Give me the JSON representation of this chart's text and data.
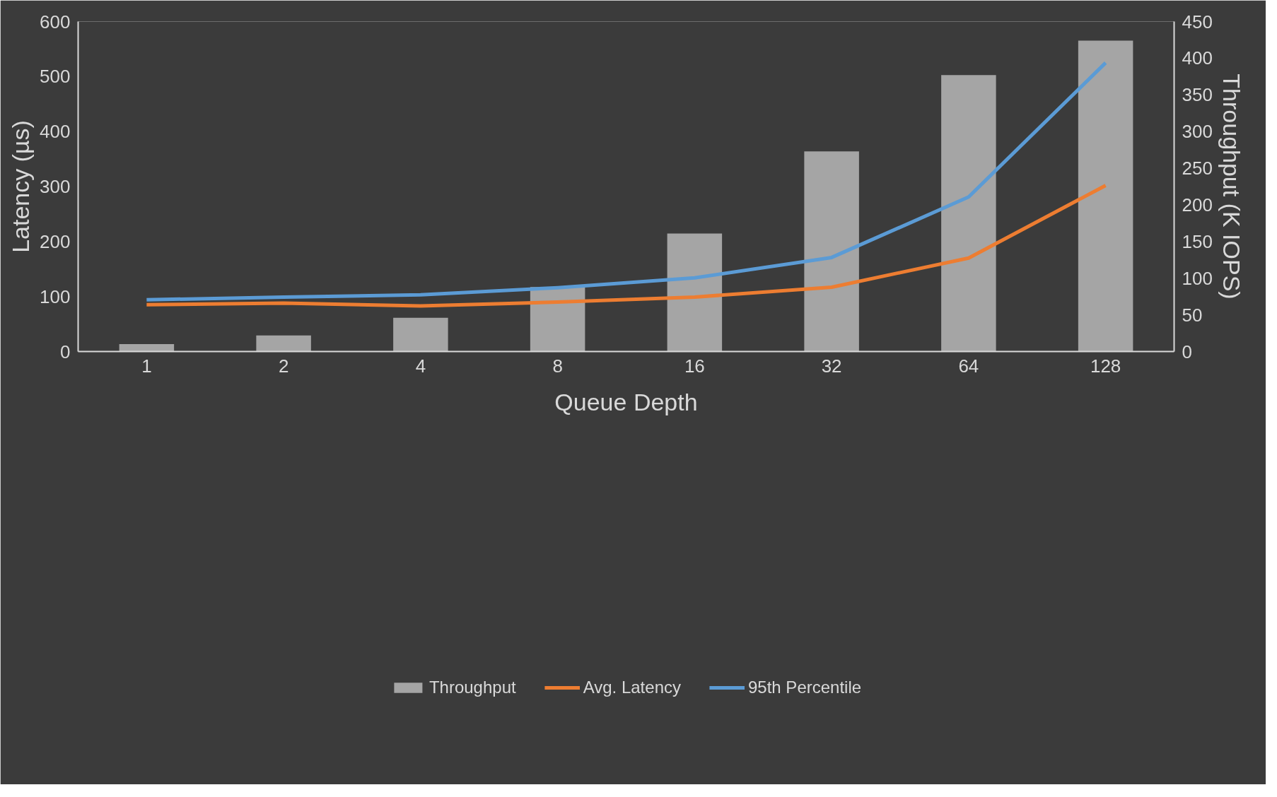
{
  "chart_data": {
    "type": "bar",
    "xlabel": "Queue Depth",
    "ylabel": "Latency (µs)",
    "y2label": "Throughput (K IOPS)",
    "categories": [
      "1",
      "2",
      "4",
      "8",
      "16",
      "32",
      "64",
      "128"
    ],
    "series": [
      {
        "name": "Throughput",
        "axis": "y2",
        "color": "#a5a5a5",
        "values": [
          10,
          22,
          46,
          88,
          161,
          273,
          377,
          424
        ]
      },
      {
        "name": "Avg. Latency",
        "type": "line",
        "color": "#ed7d31",
        "values": [
          85,
          88,
          83,
          90,
          99,
          117,
          170,
          302
        ]
      },
      {
        "name": "95th Percentile",
        "type": "line",
        "color": "#5b9bd5",
        "values": [
          94,
          99,
          103,
          116,
          134,
          171,
          281,
          525
        ]
      }
    ],
    "ylim": [
      0,
      600
    ],
    "yticks": [
      0,
      100,
      200,
      300,
      400,
      500,
      600
    ],
    "y2lim": [
      0,
      450
    ],
    "y2ticks": [
      0,
      50,
      100,
      150,
      200,
      250,
      300,
      350,
      400,
      450
    ],
    "grid": false,
    "legend": "bottom",
    "marker": "none",
    "line_style": "solid"
  }
}
